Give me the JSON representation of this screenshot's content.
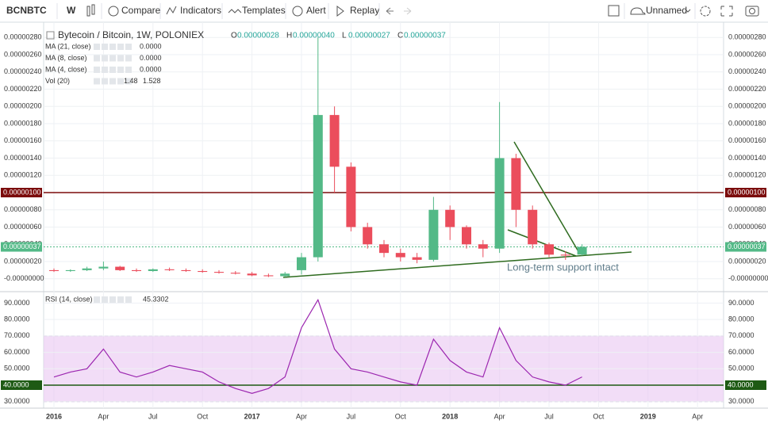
{
  "toolbar": {
    "symbol": "BCNBTC",
    "interval": "W",
    "compare": "Compare",
    "indicators": "Indicators",
    "templates": "Templates",
    "alert": "Alert",
    "replay": "Replay",
    "layout": "Unnamed"
  },
  "annotation": "Long-term support intact",
  "chart_data": [
    {
      "type": "candlestick",
      "title": "Bytecoin / Bitcoin, 1W, POLONIEX",
      "ohlc_legend": [
        {
          "name": "O",
          "value": 2.8e-07,
          "label": "0.00000028"
        },
        {
          "name": "H",
          "value": 4e-07,
          "label": "0.00000040"
        },
        {
          "name": "L",
          "value": 2.7e-07,
          "label": "0.00000027"
        },
        {
          "name": "C",
          "value": 3.7e-07,
          "label": "0.00000037"
        }
      ],
      "indicators": [
        {
          "name": "MA (21, close)",
          "value": 0,
          "label": "0.0000",
          "color": "#880e4f"
        },
        {
          "name": "MA (8, close)",
          "value": 0,
          "label": "0.0000",
          "color": "#f4b400"
        },
        {
          "name": "MA (4, close)",
          "value": 0,
          "label": "0.0000",
          "color": "#1b5e20"
        },
        {
          "name": "Vol (20)",
          "values": [
            1.48,
            1.528
          ],
          "colors": [
            "#26a69a",
            "#ff9800"
          ]
        }
      ],
      "open": [
        1e-07,
        9e-08,
        1e-07,
        1.2e-07,
        1.4e-07,
        1e-07,
        9e-08,
        1.1e-07,
        1e-07,
        9e-08,
        8e-08,
        7e-08,
        6e-08,
        4e-08,
        3e-08,
        1e-07,
        2.5e-07,
        1.9e-06,
        1.3e-06,
        6e-07,
        4e-07,
        3e-07,
        2.5e-07,
        2.2e-07,
        8e-07,
        6e-07,
        4e-07,
        3.5e-07,
        1.4e-06,
        8e-07,
        4e-07,
        2.8e-07,
        2.8e-07,
        null,
        null,
        null,
        null,
        null,
        null,
        null
      ],
      "high": [
        1.2e-07,
        1.1e-07,
        1.4e-07,
        2e-07,
        1.5e-07,
        1.2e-07,
        1.2e-07,
        1.3e-07,
        1.2e-07,
        1.1e-07,
        1e-07,
        9e-08,
        8e-08,
        6e-08,
        8e-08,
        3e-07,
        2.8e-06,
        2e-06,
        1.35e-06,
        6.5e-07,
        4.5e-07,
        3.5e-07,
        3e-07,
        9.5e-07,
        8.5e-07,
        6.2e-07,
        4.5e-07,
        2.05e-06,
        1.45e-06,
        8.5e-07,
        4.2e-07,
        3.2e-07,
        4e-07,
        null,
        null,
        null,
        null,
        null,
        null,
        null
      ],
      "low": [
        8e-08,
        8e-08,
        9e-08,
        1e-07,
        9e-08,
        8e-08,
        8e-08,
        9e-08,
        8e-08,
        7e-08,
        6e-08,
        5e-08,
        3e-08,
        2e-08,
        2e-08,
        5e-08,
        2e-07,
        1e-06,
        5.5e-07,
        3.5e-07,
        2.5e-07,
        2e-07,
        1.8e-07,
        2e-07,
        4.5e-07,
        3.5e-07,
        2.5e-07,
        3e-07,
        6e-07,
        3.5e-07,
        2.5e-07,
        2.2e-07,
        2.7e-07,
        null,
        null,
        null,
        null,
        null,
        null,
        null
      ],
      "close": [
        9e-08,
        1e-07,
        1.2e-07,
        1.4e-07,
        1e-07,
        9e-08,
        1.1e-07,
        1e-07,
        9e-08,
        8e-08,
        7e-08,
        6e-08,
        4e-08,
        3e-08,
        6e-08,
        2.5e-07,
        1.9e-06,
        1.3e-06,
        6e-07,
        4e-07,
        3e-07,
        2.5e-07,
        2.2e-07,
        8e-07,
        6e-07,
        4e-07,
        3.5e-07,
        1.4e-06,
        8e-07,
        4e-07,
        2.8e-07,
        2.7e-07,
        3.7e-07,
        null,
        null,
        null,
        null,
        null,
        null,
        null
      ],
      "up_color": "#53b987",
      "down_color": "#eb4d5c",
      "ylim": [
        -1.4e-07,
        2.94e-06
      ],
      "yticks": [
        {
          "value": 0,
          "label": "-0.00000000"
        },
        {
          "value": 2e-07,
          "label": "0.00000020"
        },
        {
          "value": 4e-07,
          "label": "0.00000040"
        },
        {
          "value": 6e-07,
          "label": "0.00000060"
        },
        {
          "value": 8e-07,
          "label": "0.00000080"
        },
        {
          "value": 1.2e-06,
          "label": "0.00000120"
        },
        {
          "value": 1.4e-06,
          "label": "0.00000140"
        },
        {
          "value": 1.6e-06,
          "label": "0.00000160"
        },
        {
          "value": 1.8e-06,
          "label": "0.00000180"
        },
        {
          "value": 2e-06,
          "label": "0.00000200"
        },
        {
          "value": 2.2e-06,
          "label": "0.00000220"
        },
        {
          "value": 2.4e-06,
          "label": "0.00000240"
        },
        {
          "value": 2.6e-06,
          "label": "0.00000260"
        },
        {
          "value": 2.8e-06,
          "label": "0.00000280"
        }
      ],
      "hline": {
        "value": 1e-06,
        "label": "0.00000100",
        "color": "#7b0b0b"
      },
      "last_price": {
        "value": 3.7e-07,
        "label": "0.00000037",
        "color": "#53b987"
      },
      "grid": true
    },
    {
      "type": "line",
      "title": "RSI (14, close)",
      "last_value": 45.3302,
      "categories": [
        "2016",
        null,
        null,
        "Apr",
        null,
        null,
        "Jul",
        null,
        null,
        "Oct",
        null,
        null,
        "2017",
        null,
        null,
        "Apr",
        null,
        null,
        "Jul",
        null,
        null,
        "Oct",
        null,
        null,
        "2018",
        null,
        null,
        "Apr",
        null,
        null,
        "Jul",
        null,
        null,
        "Oct",
        null,
        null,
        "2019",
        null,
        null,
        "Apr"
      ],
      "series": [
        {
          "name": "RSI (14, close)",
          "color": "#9c27b0",
          "values": [
            45,
            48,
            50,
            62,
            48,
            45,
            48,
            52,
            50,
            48,
            42,
            38,
            35,
            38,
            45,
            75,
            92,
            62,
            50,
            48,
            45,
            42,
            40,
            68,
            55,
            48,
            45,
            75,
            55,
            45,
            42,
            40,
            45,
            null,
            null,
            null,
            null,
            null,
            null,
            null
          ]
        }
      ],
      "ylim": [
        26,
        96
      ],
      "yticks": [
        {
          "value": 30,
          "label": "30.0000"
        },
        {
          "value": 50,
          "label": "50.0000"
        },
        {
          "value": 60,
          "label": "60.0000"
        },
        {
          "value": 70,
          "label": "70.0000"
        },
        {
          "value": 80,
          "label": "80.0000"
        },
        {
          "value": 90,
          "label": "90.0000"
        }
      ],
      "band": [
        30,
        70
      ],
      "band_color": "#e9c7f2",
      "hline": {
        "value": 40,
        "label": "40.0000",
        "color": "#1e5a14"
      },
      "grid": true
    }
  ]
}
